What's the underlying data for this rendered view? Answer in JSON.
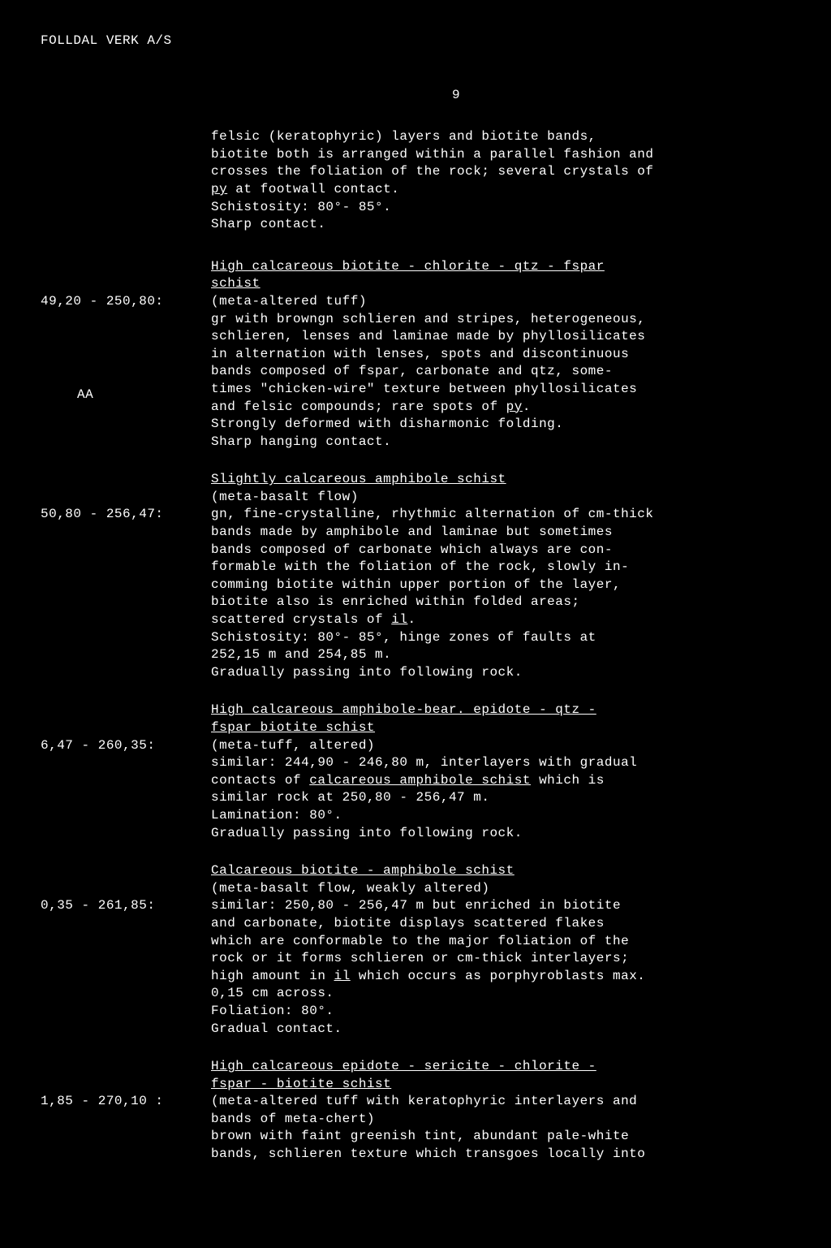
{
  "header": "FOLLDAL VERK A/S",
  "page_number": "9",
  "intro": {
    "line1": "felsic (keratophyric) layers and biotite bands,",
    "line2": "biotite both is arranged within a parallel fashion and",
    "line3": "crosses the foliation of the rock; several crystals of",
    "line4_u": "py",
    "line4_rest": " at footwall contact.",
    "line5": "Schistosity: 80°- 85°.",
    "line6": "Sharp contact."
  },
  "entries": [
    {
      "range": "49,20 - 250,80:",
      "extra_label": "AA",
      "title_u": "High calcareous biotite - chlorite - qtz - fspar",
      "title_u2": "schist",
      "line1": "(meta-altered tuff)",
      "line2": "gr with browngn schlieren and stripes, heterogeneous,",
      "line3": "schlieren, lenses and laminae made by phyllosilicates",
      "line4": "in alternation with lenses, spots and discontinuous",
      "line5": "bands composed of fspar, carbonate and qtz, some-",
      "line6": "times \"chicken-wire\" texture between phyllosilicates",
      "line7a": "and felsic compounds; rare spots of ",
      "line7_u": "py",
      "line7b": ".",
      "line8": "Strongly deformed with disharmonic folding.",
      "line9": "Sharp hanging contact."
    },
    {
      "range": "50,80 - 256,47:",
      "title_u": "Slightly calcareous amphibole schist",
      "line1": "(meta-basalt flow)",
      "line2": "gn, fine-crystalline, rhythmic alternation of cm-thick",
      "line3": "bands made by amphibole and laminae but sometimes",
      "line4": "bands composed of carbonate which always are con-",
      "line5": "formable with the foliation of the rock, slowly in-",
      "line6": "comming biotite within upper portion of the layer,",
      "line7": "biotite also is enriched within folded areas;",
      "line8a": "scattered crystals of ",
      "line8_u": "il",
      "line8b": ".",
      "line9": "Schistosity: 80°- 85°, hinge zones of faults at",
      "line10": "252,15 m and 254,85 m.",
      "line11": "Gradually passing into following rock."
    },
    {
      "range": "6,47 - 260,35:",
      "title_u": "High calcareous amphibole-bear. epidote - qtz -",
      "title_u2": "fspar biotite schist",
      "line1": "(meta-tuff, altered)",
      "line2": "similar: 244,90 - 246,80 m, interlayers with gradual",
      "line3a": "contacts of ",
      "line3_u": "calcareous amphibole schist",
      "line3b": " which is",
      "line4": "similar rock at 250,80 - 256,47 m.",
      "line5": "Lamination: 80°.",
      "line6": "Gradually passing into following rock."
    },
    {
      "range": "0,35 - 261,85:",
      "title_u": "Calcareous biotite - amphibole schist",
      "line1": "(meta-basalt flow, weakly altered)",
      "line2": "similar: 250,80 - 256,47 m but enriched in biotite",
      "line3": "and carbonate, biotite displays scattered flakes",
      "line4": "which are conformable to the major foliation of the",
      "line5": "rock or it forms schlieren or cm-thick interlayers;",
      "line6a": "high amount in ",
      "line6_u": "il",
      "line6b": " which occurs as porphyroblasts max.",
      "line7": "0,15 cm across.",
      "line8": "Foliation: 80°.",
      "line9": "Gradual contact."
    },
    {
      "range": "1,85 - 270,10 :",
      "title_u": "High calcareous epidote - sericite - chlorite -",
      "title_u2": "fspar - biotite schist",
      "line1": "(meta-altered tuff with keratophyric interlayers and",
      "line2": "bands of meta-chert)",
      "line3": "brown with faint greenish tint, abundant pale-white",
      "line4": "bands, schlieren texture which transgoes locally into"
    }
  ]
}
